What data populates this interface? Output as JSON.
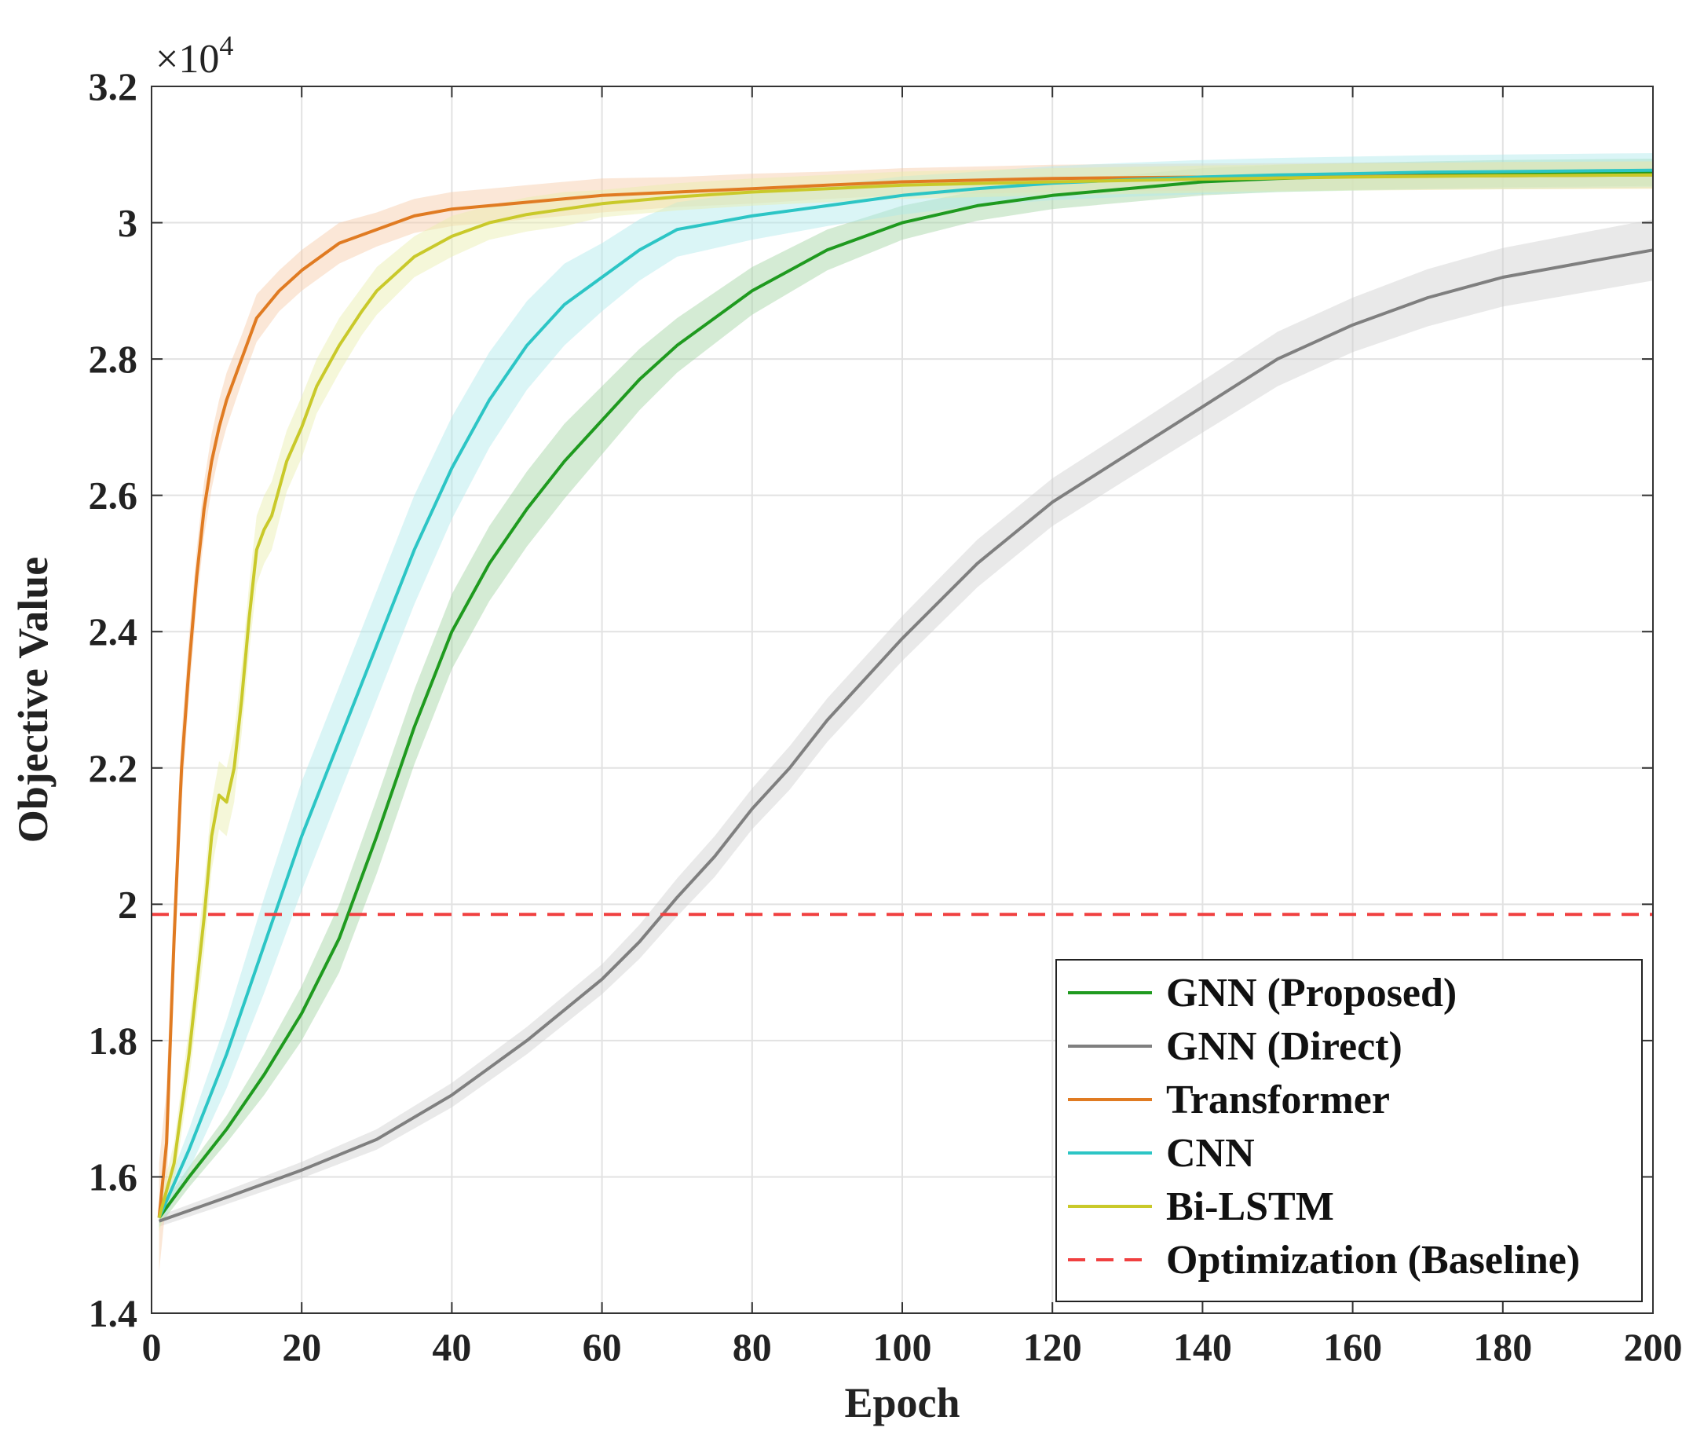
{
  "chart_data": {
    "type": "line",
    "xlabel": "Epoch",
    "ylabel": "Objective Value",
    "xlim": [
      0,
      200
    ],
    "ylim": [
      1.4,
      3.2
    ],
    "y_multiplier_label": "×10",
    "y_multiplier_exp": "4",
    "grid": true,
    "legend_position": "bottom-right",
    "xticks": [
      "0",
      "20",
      "40",
      "60",
      "80",
      "100",
      "120",
      "140",
      "160",
      "180",
      "200"
    ],
    "yticks": [
      "1.4",
      "1.6",
      "1.8",
      "2",
      "2.2",
      "2.4",
      "2.6",
      "2.8",
      "3",
      "3.2"
    ],
    "series": [
      {
        "name": "GNN (Proposed)",
        "color": "#1f9a1f",
        "band_color": "#9fd39f",
        "x": [
          1,
          5,
          10,
          15,
          20,
          25,
          30,
          35,
          40,
          45,
          50,
          55,
          60,
          65,
          70,
          80,
          90,
          100,
          110,
          120,
          130,
          140,
          150,
          160,
          170,
          180,
          190,
          200
        ],
        "y": [
          1.54,
          1.6,
          1.67,
          1.75,
          1.84,
          1.95,
          2.1,
          2.26,
          2.4,
          2.5,
          2.58,
          2.65,
          2.71,
          2.77,
          2.82,
          2.9,
          2.96,
          3.0,
          3.025,
          3.04,
          3.05,
          3.06,
          3.065,
          3.068,
          3.07,
          3.072,
          3.073,
          3.074
        ],
        "band": [
          0.012,
          0.015,
          0.02,
          0.03,
          0.04,
          0.05,
          0.055,
          0.055,
          0.055,
          0.055,
          0.055,
          0.055,
          0.05,
          0.045,
          0.04,
          0.035,
          0.03,
          0.025,
          0.022,
          0.02,
          0.02,
          0.02,
          0.02,
          0.02,
          0.02,
          0.02,
          0.02,
          0.02
        ]
      },
      {
        "name": "GNN (Direct)",
        "color": "#7f7f7f",
        "band_color": "#cfcfcf",
        "x": [
          1,
          10,
          20,
          30,
          40,
          50,
          60,
          65,
          70,
          75,
          80,
          85,
          90,
          100,
          110,
          120,
          130,
          140,
          150,
          160,
          170,
          180,
          190,
          200
        ],
        "y": [
          1.535,
          1.57,
          1.61,
          1.655,
          1.72,
          1.8,
          1.89,
          1.945,
          2.01,
          2.07,
          2.14,
          2.2,
          2.27,
          2.39,
          2.5,
          2.59,
          2.66,
          2.73,
          2.8,
          2.85,
          2.89,
          2.92,
          2.94,
          2.96
        ],
        "band": [
          0.008,
          0.01,
          0.012,
          0.015,
          0.018,
          0.02,
          0.022,
          0.025,
          0.028,
          0.03,
          0.03,
          0.032,
          0.032,
          0.033,
          0.035,
          0.035,
          0.036,
          0.038,
          0.04,
          0.04,
          0.042,
          0.043,
          0.044,
          0.045
        ]
      },
      {
        "name": "Transformer",
        "color": "#e07b22",
        "band_color": "#f7c9a6",
        "x": [
          1,
          2,
          3,
          4,
          5,
          6,
          7,
          8,
          9,
          10,
          12,
          14,
          17,
          20,
          25,
          30,
          35,
          40,
          45,
          50,
          60,
          70,
          80,
          90,
          100,
          120,
          140,
          160,
          180,
          200
        ],
        "y": [
          1.54,
          1.65,
          1.95,
          2.2,
          2.35,
          2.48,
          2.58,
          2.65,
          2.7,
          2.74,
          2.8,
          2.86,
          2.9,
          2.93,
          2.97,
          2.99,
          3.01,
          3.02,
          3.025,
          3.03,
          3.04,
          3.045,
          3.05,
          3.055,
          3.06,
          3.065,
          3.067,
          3.068,
          3.069,
          3.07
        ],
        "band": [
          0.08,
          0.08,
          0.06,
          0.05,
          0.045,
          0.04,
          0.04,
          0.04,
          0.04,
          0.04,
          0.035,
          0.035,
          0.03,
          0.03,
          0.03,
          0.025,
          0.025,
          0.025,
          0.025,
          0.025,
          0.025,
          0.022,
          0.022,
          0.02,
          0.02,
          0.02,
          0.02,
          0.02,
          0.02,
          0.02
        ]
      },
      {
        "name": "CNN",
        "color": "#2cc5c5",
        "band_color": "#aee9ec",
        "x": [
          1,
          5,
          10,
          15,
          20,
          25,
          30,
          35,
          40,
          45,
          50,
          55,
          60,
          65,
          70,
          80,
          90,
          100,
          110,
          120,
          130,
          140,
          150,
          160,
          170,
          180,
          190,
          200
        ],
        "y": [
          1.54,
          1.64,
          1.78,
          1.94,
          2.1,
          2.24,
          2.38,
          2.52,
          2.64,
          2.74,
          2.82,
          2.88,
          2.92,
          2.96,
          2.99,
          3.01,
          3.025,
          3.04,
          3.05,
          3.058,
          3.063,
          3.067,
          3.07,
          3.072,
          3.074,
          3.075,
          3.076,
          3.077
        ],
        "band": [
          0.015,
          0.03,
          0.05,
          0.07,
          0.08,
          0.08,
          0.08,
          0.08,
          0.075,
          0.07,
          0.065,
          0.06,
          0.05,
          0.045,
          0.04,
          0.035,
          0.03,
          0.028,
          0.025,
          0.025,
          0.025,
          0.025,
          0.025,
          0.025,
          0.025,
          0.025,
          0.025,
          0.025
        ]
      },
      {
        "name": "Bi-LSTM",
        "color": "#c9c92a",
        "band_color": "#e8edaa",
        "x": [
          1,
          3,
          5,
          7,
          8,
          9,
          10,
          11,
          12,
          13,
          14,
          15,
          16,
          18,
          20,
          22,
          25,
          28,
          30,
          35,
          40,
          45,
          50,
          55,
          60,
          70,
          80,
          90,
          100,
          120,
          140,
          160,
          180,
          200
        ],
        "y": [
          1.54,
          1.62,
          1.78,
          1.98,
          2.1,
          2.16,
          2.15,
          2.2,
          2.3,
          2.42,
          2.52,
          2.55,
          2.57,
          2.65,
          2.7,
          2.76,
          2.82,
          2.87,
          2.9,
          2.95,
          2.98,
          3.0,
          3.012,
          3.02,
          3.028,
          3.038,
          3.045,
          3.05,
          3.055,
          3.06,
          3.064,
          3.067,
          3.069,
          3.07
        ],
        "band": [
          0.02,
          0.03,
          0.04,
          0.05,
          0.05,
          0.05,
          0.05,
          0.05,
          0.05,
          0.05,
          0.05,
          0.05,
          0.05,
          0.045,
          0.045,
          0.04,
          0.04,
          0.035,
          0.035,
          0.03,
          0.03,
          0.025,
          0.025,
          0.025,
          0.02,
          0.02,
          0.02,
          0.02,
          0.02,
          0.02,
          0.02,
          0.02,
          0.02,
          0.02
        ]
      },
      {
        "name": "Optimization (Baseline)",
        "color": "#f04040",
        "dashed": true,
        "x": [
          0,
          200
        ],
        "y": [
          1.985,
          1.985
        ]
      }
    ]
  }
}
